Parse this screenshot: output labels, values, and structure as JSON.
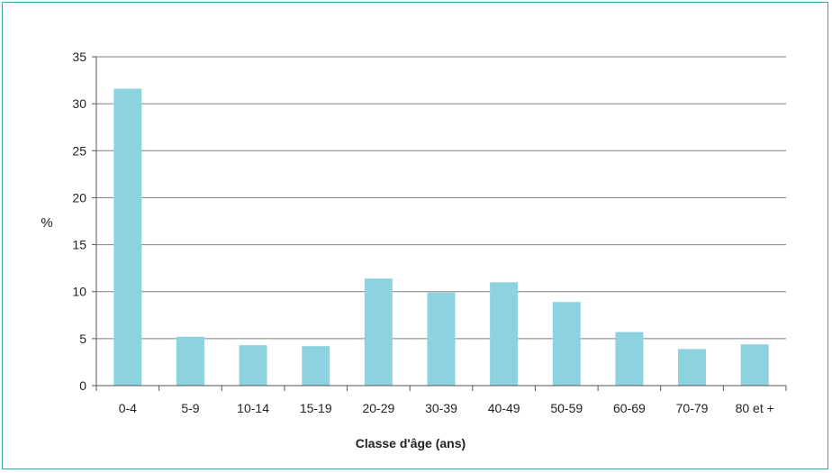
{
  "chart_data": {
    "type": "bar",
    "categories": [
      "0-4",
      "5-9",
      "10-14",
      "15-19",
      "20-29",
      "30-39",
      "40-49",
      "50-59",
      "60-69",
      "70-79",
      "80 et +"
    ],
    "values": [
      31.6,
      5.2,
      4.3,
      4.2,
      11.4,
      9.9,
      11.0,
      8.9,
      5.7,
      3.9,
      4.4
    ],
    "title": "",
    "xlabel": "Classe d'âge (ans)",
    "ylabel": "%",
    "ylim": [
      0,
      35
    ],
    "yticks": [
      0,
      5,
      10,
      15,
      20,
      25,
      30,
      35
    ],
    "grid": true,
    "legend": "none",
    "bar_color": "#8dd3df",
    "grid_color": "#7f7f7f",
    "frame_color": "#3aa89a"
  }
}
